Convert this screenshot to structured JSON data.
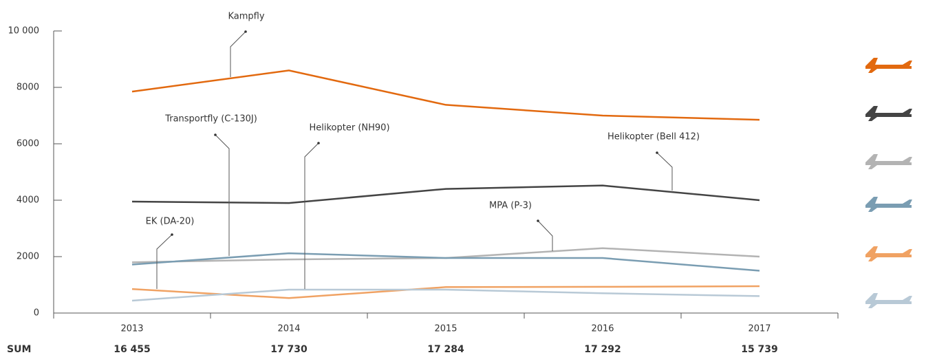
{
  "chart_data": {
    "type": "line",
    "categories": [
      "2013",
      "2014",
      "2015",
      "2016",
      "2017"
    ],
    "series": [
      {
        "name": "Kampfly",
        "color": "#e2690f",
        "values": [
          7850,
          8600,
          7380,
          7000,
          6850
        ]
      },
      {
        "name": "Helikopter (Bell 412)",
        "color": "#444444",
        "values": [
          3950,
          3900,
          4400,
          4520,
          4000
        ]
      },
      {
        "name": "MPA (P-3)",
        "color": "#b3b3b3",
        "values": [
          1800,
          1900,
          1950,
          2300,
          2000
        ]
      },
      {
        "name": "Transportfly (C-130J)",
        "color": "#7a9db2",
        "values": [
          1720,
          2120,
          1950,
          1950,
          1500
        ]
      },
      {
        "name": "EK (DA-20)",
        "color": "#f0a263",
        "values": [
          850,
          530,
          920,
          930,
          950
        ]
      },
      {
        "name": "Helikopter (NH90)",
        "color": "#b8c9d6",
        "values": [
          440,
          830,
          830,
          700,
          600
        ]
      }
    ],
    "ylim": [
      0,
      10000
    ],
    "yticks": [
      0,
      2000,
      4000,
      6000,
      8000,
      {
        "value": 10000,
        "label": "10 000"
      }
    ],
    "totals": {
      "label": "SUM",
      "values": [
        16455,
        17730,
        17284,
        17292,
        15739
      ],
      "value_labels": [
        "16 455",
        "17 730",
        "17 284",
        "17 292",
        "15 739"
      ]
    }
  }
}
